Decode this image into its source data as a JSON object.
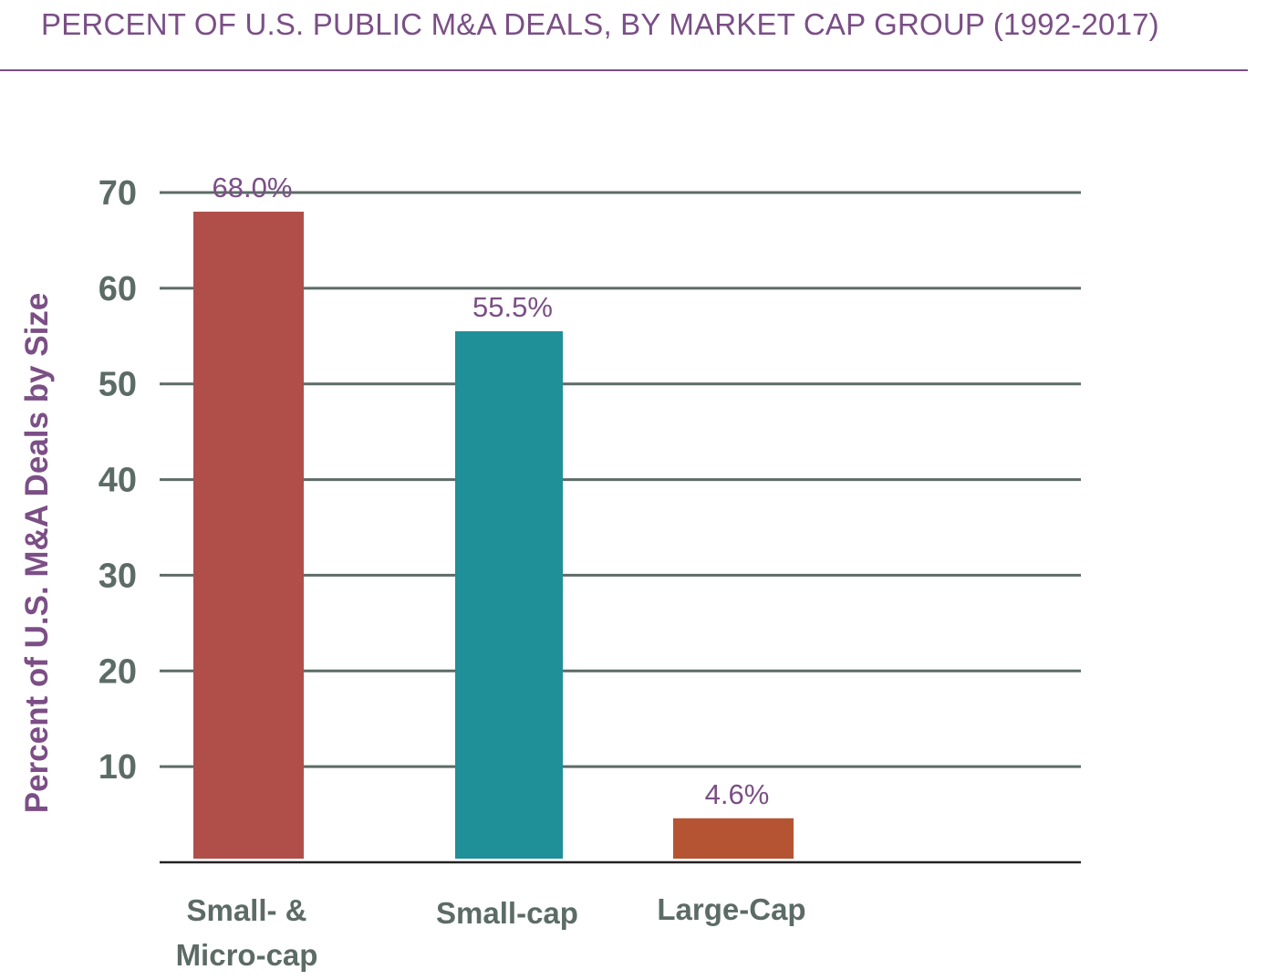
{
  "chart_data": {
    "type": "bar",
    "title": "PERCENT OF U.S. PUBLIC M&A DEALS, BY MARKET CAP GROUP (1992-2017)",
    "xlabel": "",
    "ylabel": "Percent of U.S. M&A Deals by Size",
    "ylim": [
      0,
      70
    ],
    "yticks": [
      10,
      20,
      30,
      40,
      50,
      60,
      70
    ],
    "grid": true,
    "categories": [
      [
        "Small- &",
        "Micro-cap"
      ],
      [
        "Small-cap"
      ],
      [
        "Large-Cap"
      ]
    ],
    "values": [
      68.0,
      55.5,
      4.6
    ],
    "data_labels": [
      "68.0%",
      "55.5%",
      "4.6%"
    ],
    "colors": [
      "#b04e4a",
      "#1f8f98",
      "#b55433"
    ],
    "grid_color": "#5c6b66",
    "axis_color": "#222222"
  }
}
